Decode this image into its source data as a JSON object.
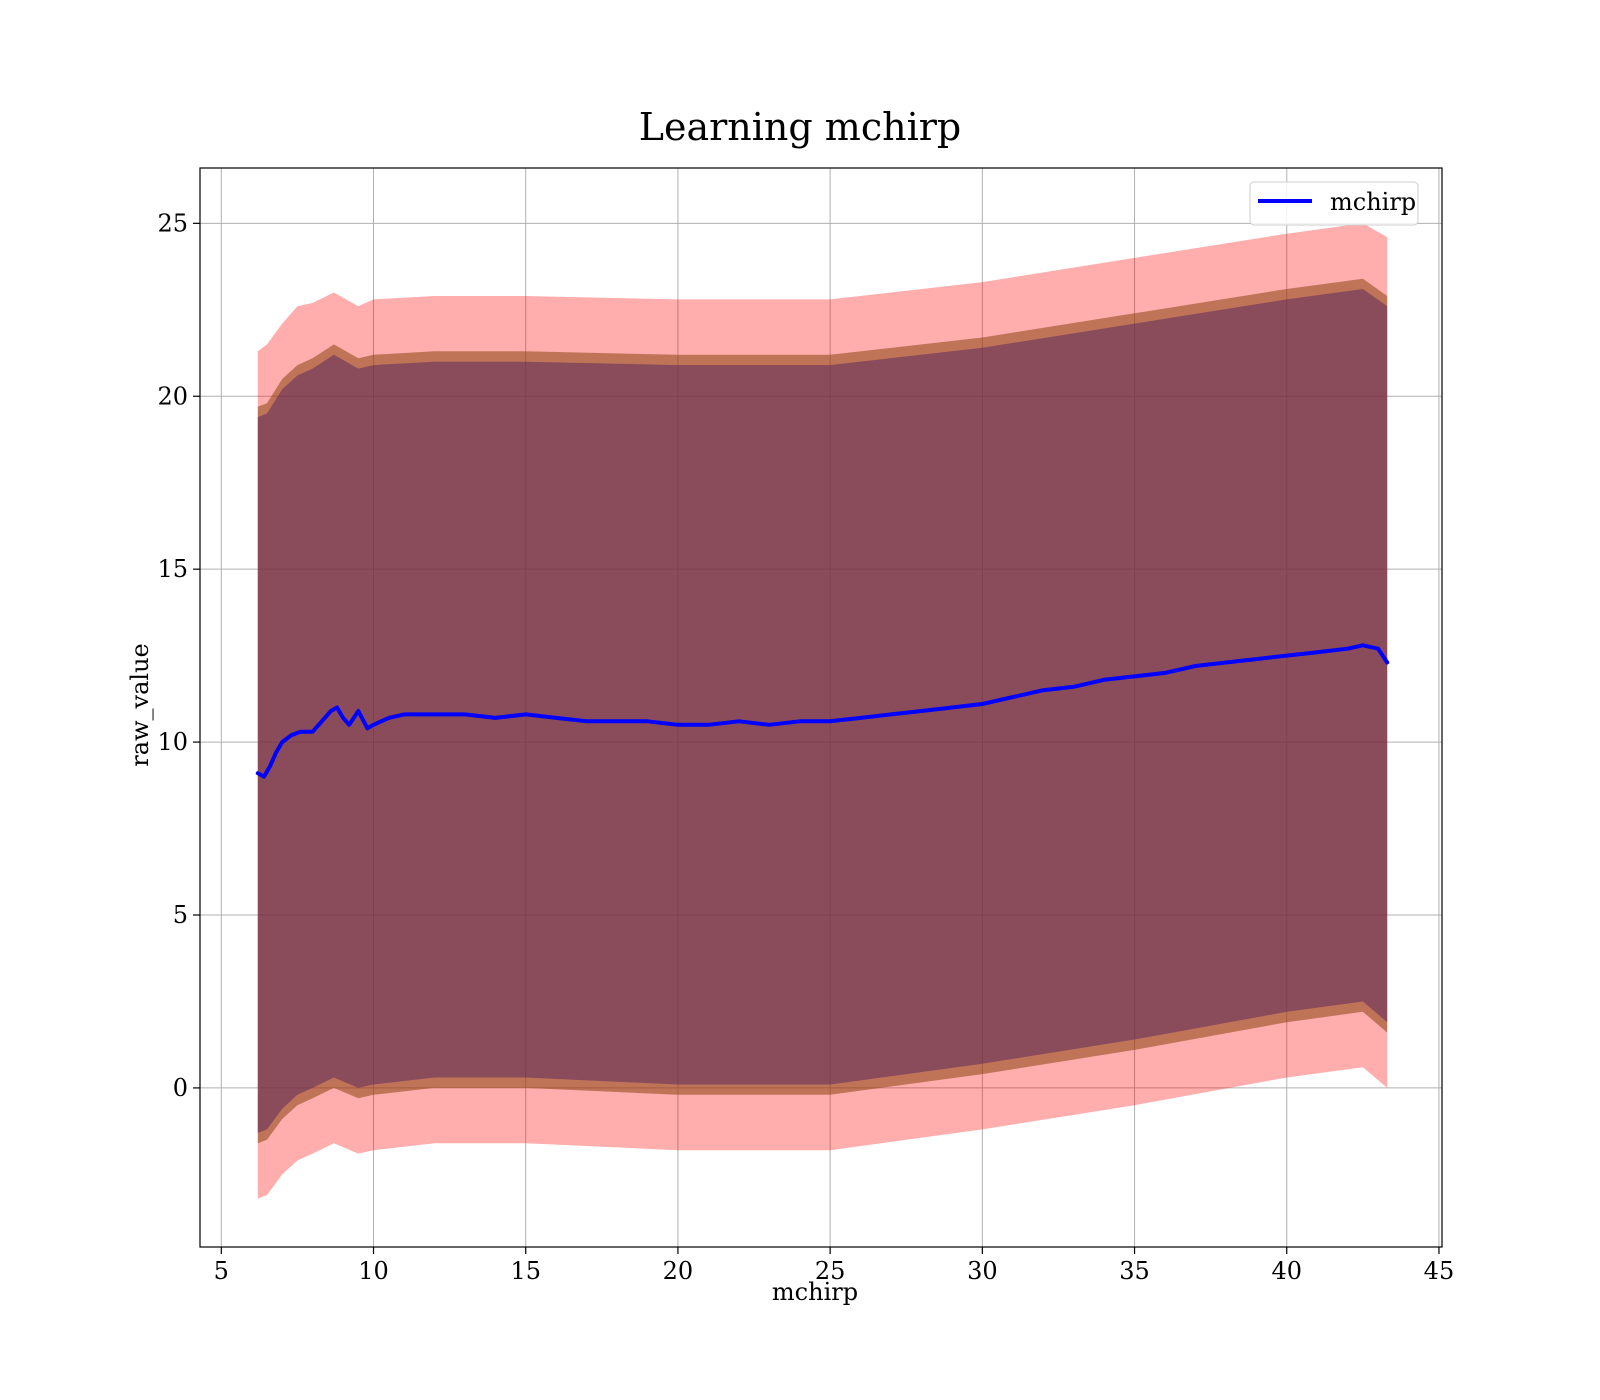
{
  "chart_data": {
    "type": "line",
    "title": "Learning mchirp",
    "xlabel": "mchirp",
    "ylabel": "raw_value",
    "xlim": [
      4.3,
      45.1
    ],
    "ylim": [
      -4.6,
      26.6
    ],
    "xticks": [
      5,
      10,
      15,
      20,
      25,
      30,
      35,
      40,
      45
    ],
    "yticks": [
      0,
      5,
      10,
      15,
      20,
      25
    ],
    "grid": true,
    "legend_position": "top-right",
    "colors": {
      "line": "#0000ff",
      "outer_band": "#ff0000",
      "inner_band": "#8b4513",
      "mid_band": "#5e2a5e",
      "grid": "#b0b0b0"
    },
    "series": [
      {
        "name": "mchirp",
        "x": [
          6.2,
          6.4,
          6.6,
          6.8,
          7.0,
          7.3,
          7.6,
          8.0,
          8.3,
          8.6,
          8.8,
          9.0,
          9.2,
          9.5,
          9.8,
          10.0,
          10.5,
          11.0,
          12.0,
          13.0,
          14.0,
          15.0,
          16.0,
          17.0,
          18.0,
          19.0,
          20.0,
          21.0,
          22.0,
          23.0,
          24.0,
          25.0,
          26.0,
          27.0,
          28.0,
          29.0,
          30.0,
          31.0,
          32.0,
          33.0,
          34.0,
          35.0,
          36.0,
          37.0,
          38.0,
          39.0,
          40.0,
          41.0,
          42.0,
          42.5,
          43.0,
          43.3
        ],
        "y": [
          9.1,
          9.0,
          9.3,
          9.7,
          10.0,
          10.2,
          10.3,
          10.3,
          10.6,
          10.9,
          11.0,
          10.7,
          10.5,
          10.9,
          10.4,
          10.5,
          10.7,
          10.8,
          10.8,
          10.8,
          10.7,
          10.8,
          10.7,
          10.6,
          10.6,
          10.6,
          10.5,
          10.5,
          10.6,
          10.5,
          10.6,
          10.6,
          10.7,
          10.8,
          10.9,
          11.0,
          11.1,
          11.3,
          11.5,
          11.6,
          11.8,
          11.9,
          12.0,
          12.2,
          12.3,
          12.4,
          12.5,
          12.6,
          12.7,
          12.8,
          12.7,
          12.3
        ]
      }
    ],
    "bands": [
      {
        "x": [
          6.2,
          6.5,
          7.0,
          7.5,
          8.0,
          8.7,
          9.5,
          10.0,
          12.0,
          15.0,
          20.0,
          25.0,
          30.0,
          35.0,
          40.0,
          42.5,
          43.3
        ],
        "upper": [
          21.3,
          21.5,
          22.1,
          22.6,
          22.7,
          23.0,
          22.6,
          22.8,
          22.9,
          22.9,
          22.8,
          22.8,
          23.3,
          24.0,
          24.7,
          25.0,
          24.6
        ],
        "lower": [
          -3.2,
          -3.1,
          -2.5,
          -2.1,
          -1.9,
          -1.6,
          -1.9,
          -1.8,
          -1.6,
          -1.6,
          -1.8,
          -1.8,
          -1.2,
          -0.5,
          0.3,
          0.6,
          0.0
        ]
      },
      {
        "x": [
          6.2,
          6.5,
          7.0,
          7.5,
          8.0,
          8.7,
          9.5,
          10.0,
          12.0,
          15.0,
          20.0,
          25.0,
          30.0,
          35.0,
          40.0,
          42.5,
          43.3
        ],
        "upper": [
          19.7,
          19.8,
          20.5,
          20.9,
          21.1,
          21.5,
          21.1,
          21.2,
          21.3,
          21.3,
          21.2,
          21.2,
          21.7,
          22.4,
          23.1,
          23.4,
          22.9
        ],
        "lower": [
          -1.6,
          -1.5,
          -0.9,
          -0.5,
          -0.3,
          0.0,
          -0.3,
          -0.2,
          0.0,
          0.0,
          -0.2,
          -0.2,
          0.4,
          1.1,
          1.9,
          2.2,
          1.6
        ]
      },
      {
        "x": [
          6.2,
          6.5,
          7.0,
          7.5,
          8.0,
          8.7,
          9.5,
          10.0,
          12.0,
          15.0,
          20.0,
          25.0,
          30.0,
          35.0,
          40.0,
          42.5,
          43.3
        ],
        "upper": [
          19.4,
          19.5,
          20.2,
          20.6,
          20.8,
          21.2,
          20.8,
          20.9,
          21.0,
          21.0,
          20.9,
          20.9,
          21.4,
          22.1,
          22.8,
          23.1,
          22.6
        ],
        "lower": [
          -1.3,
          -1.2,
          -0.6,
          -0.2,
          0.0,
          0.3,
          0.0,
          0.1,
          0.3,
          0.3,
          0.1,
          0.1,
          0.7,
          1.4,
          2.2,
          2.5,
          1.9
        ]
      }
    ]
  }
}
